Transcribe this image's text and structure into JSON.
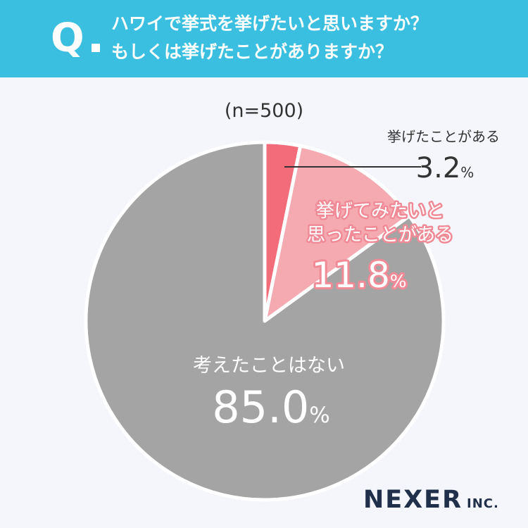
{
  "question": {
    "mark": "Q",
    "line1": "ハワイで挙式を挙げたいと思いますか？",
    "line2": "もしくは挙げたことがありますか？"
  },
  "sample": "(n=500)",
  "brand": {
    "name": "NEXER",
    "suffix": "INC."
  },
  "chart_data": {
    "type": "pie",
    "slices": [
      {
        "label": "挙げたことがある",
        "value": 3.2,
        "display": "3.2",
        "unit": "%",
        "color": "#f26c7a"
      },
      {
        "label": "挙げてみたいと思ったことがある",
        "label_lines": [
          "挙げてみたいと",
          "思ったことがある"
        ],
        "value": 11.8,
        "display": "11.8",
        "unit": "%",
        "color": "#f5a9b1"
      },
      {
        "label": "考えたことはない",
        "value": 85.0,
        "display": "85.0",
        "unit": "%",
        "color": "#a4a4a4"
      }
    ]
  }
}
